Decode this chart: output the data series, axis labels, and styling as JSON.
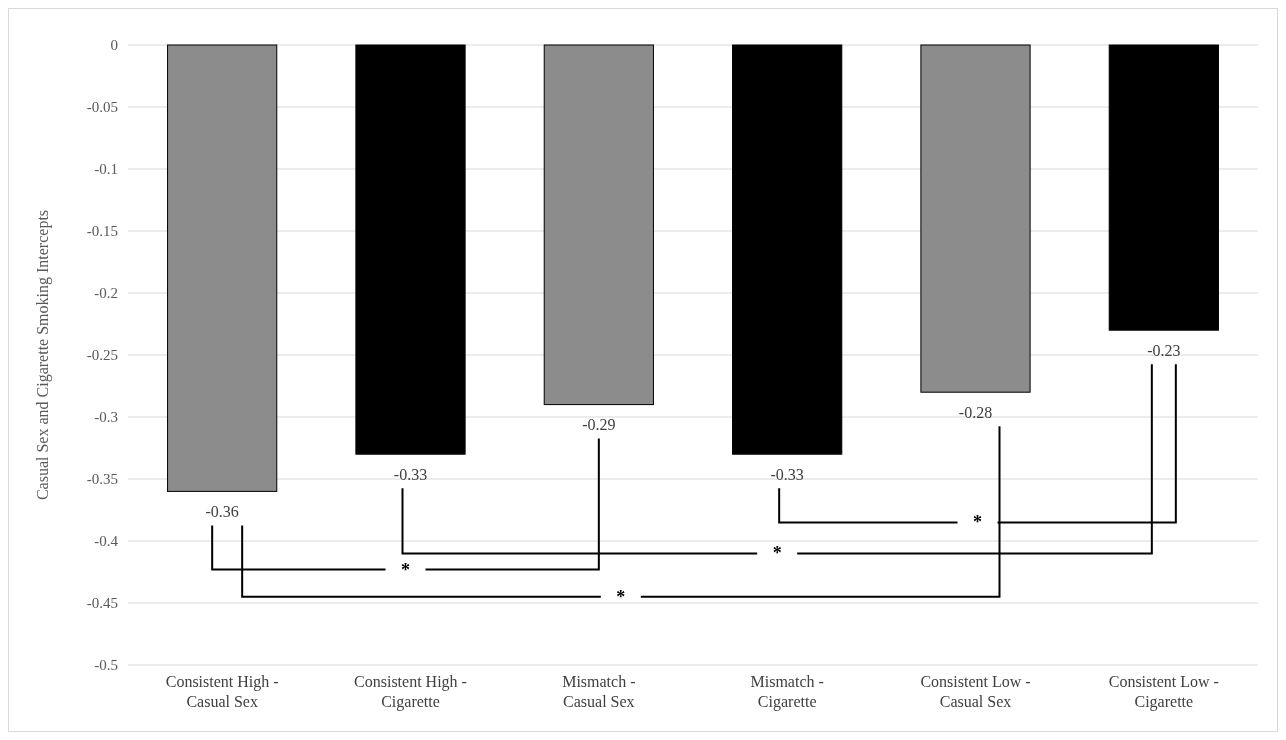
{
  "chart_data": {
    "type": "bar",
    "ylabel": "Casual Sex and Cigarette Smoking Intercepts",
    "categories": [
      "Consistent High - Casual Sex",
      "Consistent High - Cigarette",
      "Mismatch - Casual Sex",
      "Mismatch - Cigarette",
      "Consistent Low - Casual Sex",
      "Consistent Low - Cigarette"
    ],
    "values": [
      -0.36,
      -0.33,
      -0.29,
      -0.33,
      -0.28,
      -0.23
    ],
    "colors": [
      "#8c8c8c",
      "#000000",
      "#8c8c8c",
      "#000000",
      "#8c8c8c",
      "#000000"
    ],
    "ylim": [
      -0.5,
      0
    ],
    "yticks": [
      0,
      -0.05,
      -0.1,
      -0.15,
      -0.2,
      -0.25,
      -0.3,
      -0.35,
      -0.4,
      -0.45,
      -0.5
    ],
    "grid": "y",
    "data_labels": true,
    "annotations": [
      "*",
      "*",
      "*",
      "*"
    ]
  }
}
